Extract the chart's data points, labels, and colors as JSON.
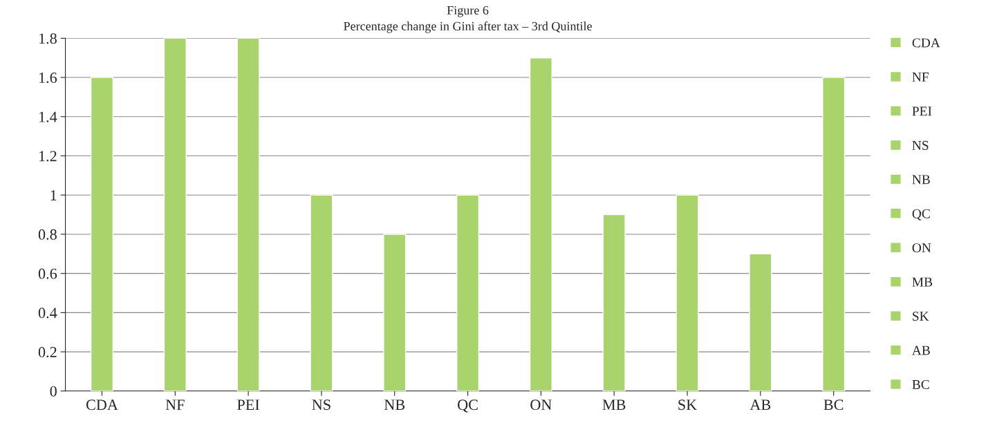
{
  "chart_data": {
    "type": "bar",
    "title": "Figure 6",
    "subtitle": "Percentage change in Gini after tax – 3rd Quintile",
    "categories": [
      "CDA",
      "NF",
      "PEI",
      "NS",
      "NB",
      "QC",
      "ON",
      "MB",
      "SK",
      "AB",
      "BC"
    ],
    "series": [
      {
        "name": "CDA",
        "color": "#a9d46c",
        "values": [
          1.6,
          null,
          null,
          null,
          null,
          null,
          null,
          null,
          null,
          null,
          null
        ]
      },
      {
        "name": "NF",
        "color": "#a9d46c",
        "values": [
          null,
          1.8,
          null,
          null,
          null,
          null,
          null,
          null,
          null,
          null,
          null
        ]
      },
      {
        "name": "PEI",
        "color": "#a9d46c",
        "values": [
          null,
          null,
          1.8,
          null,
          null,
          null,
          null,
          null,
          null,
          null,
          null
        ]
      },
      {
        "name": "NS",
        "color": "#a9d46c",
        "values": [
          null,
          null,
          null,
          1.0,
          null,
          null,
          null,
          null,
          null,
          null,
          null
        ]
      },
      {
        "name": "NB",
        "color": "#a9d46c",
        "values": [
          null,
          null,
          null,
          null,
          0.8,
          null,
          null,
          null,
          null,
          null,
          null
        ]
      },
      {
        "name": "QC",
        "color": "#a9d46c",
        "values": [
          null,
          null,
          null,
          null,
          null,
          1.0,
          null,
          null,
          null,
          null,
          null
        ]
      },
      {
        "name": "ON",
        "color": "#a9d46c",
        "values": [
          null,
          null,
          null,
          null,
          null,
          null,
          1.7,
          null,
          null,
          null,
          null
        ]
      },
      {
        "name": "MB",
        "color": "#a9d46c",
        "values": [
          null,
          null,
          null,
          null,
          null,
          null,
          null,
          0.9,
          null,
          null,
          null
        ]
      },
      {
        "name": "SK",
        "color": "#a9d46c",
        "values": [
          null,
          null,
          null,
          null,
          null,
          null,
          null,
          null,
          1.0,
          null,
          null
        ]
      },
      {
        "name": "AB",
        "color": "#a9d46c",
        "values": [
          null,
          null,
          null,
          null,
          null,
          null,
          null,
          null,
          null,
          0.7,
          null
        ]
      },
      {
        "name": "BC",
        "color": "#a9d46c",
        "values": [
          null,
          null,
          null,
          null,
          null,
          null,
          null,
          null,
          null,
          null,
          1.6
        ]
      }
    ],
    "ylim": [
      0,
      1.8
    ],
    "yticks": [
      0,
      0.2,
      0.4,
      0.6,
      0.8,
      1,
      1.2,
      1.4,
      1.6,
      1.8
    ],
    "grid": "y",
    "legend": "right"
  }
}
